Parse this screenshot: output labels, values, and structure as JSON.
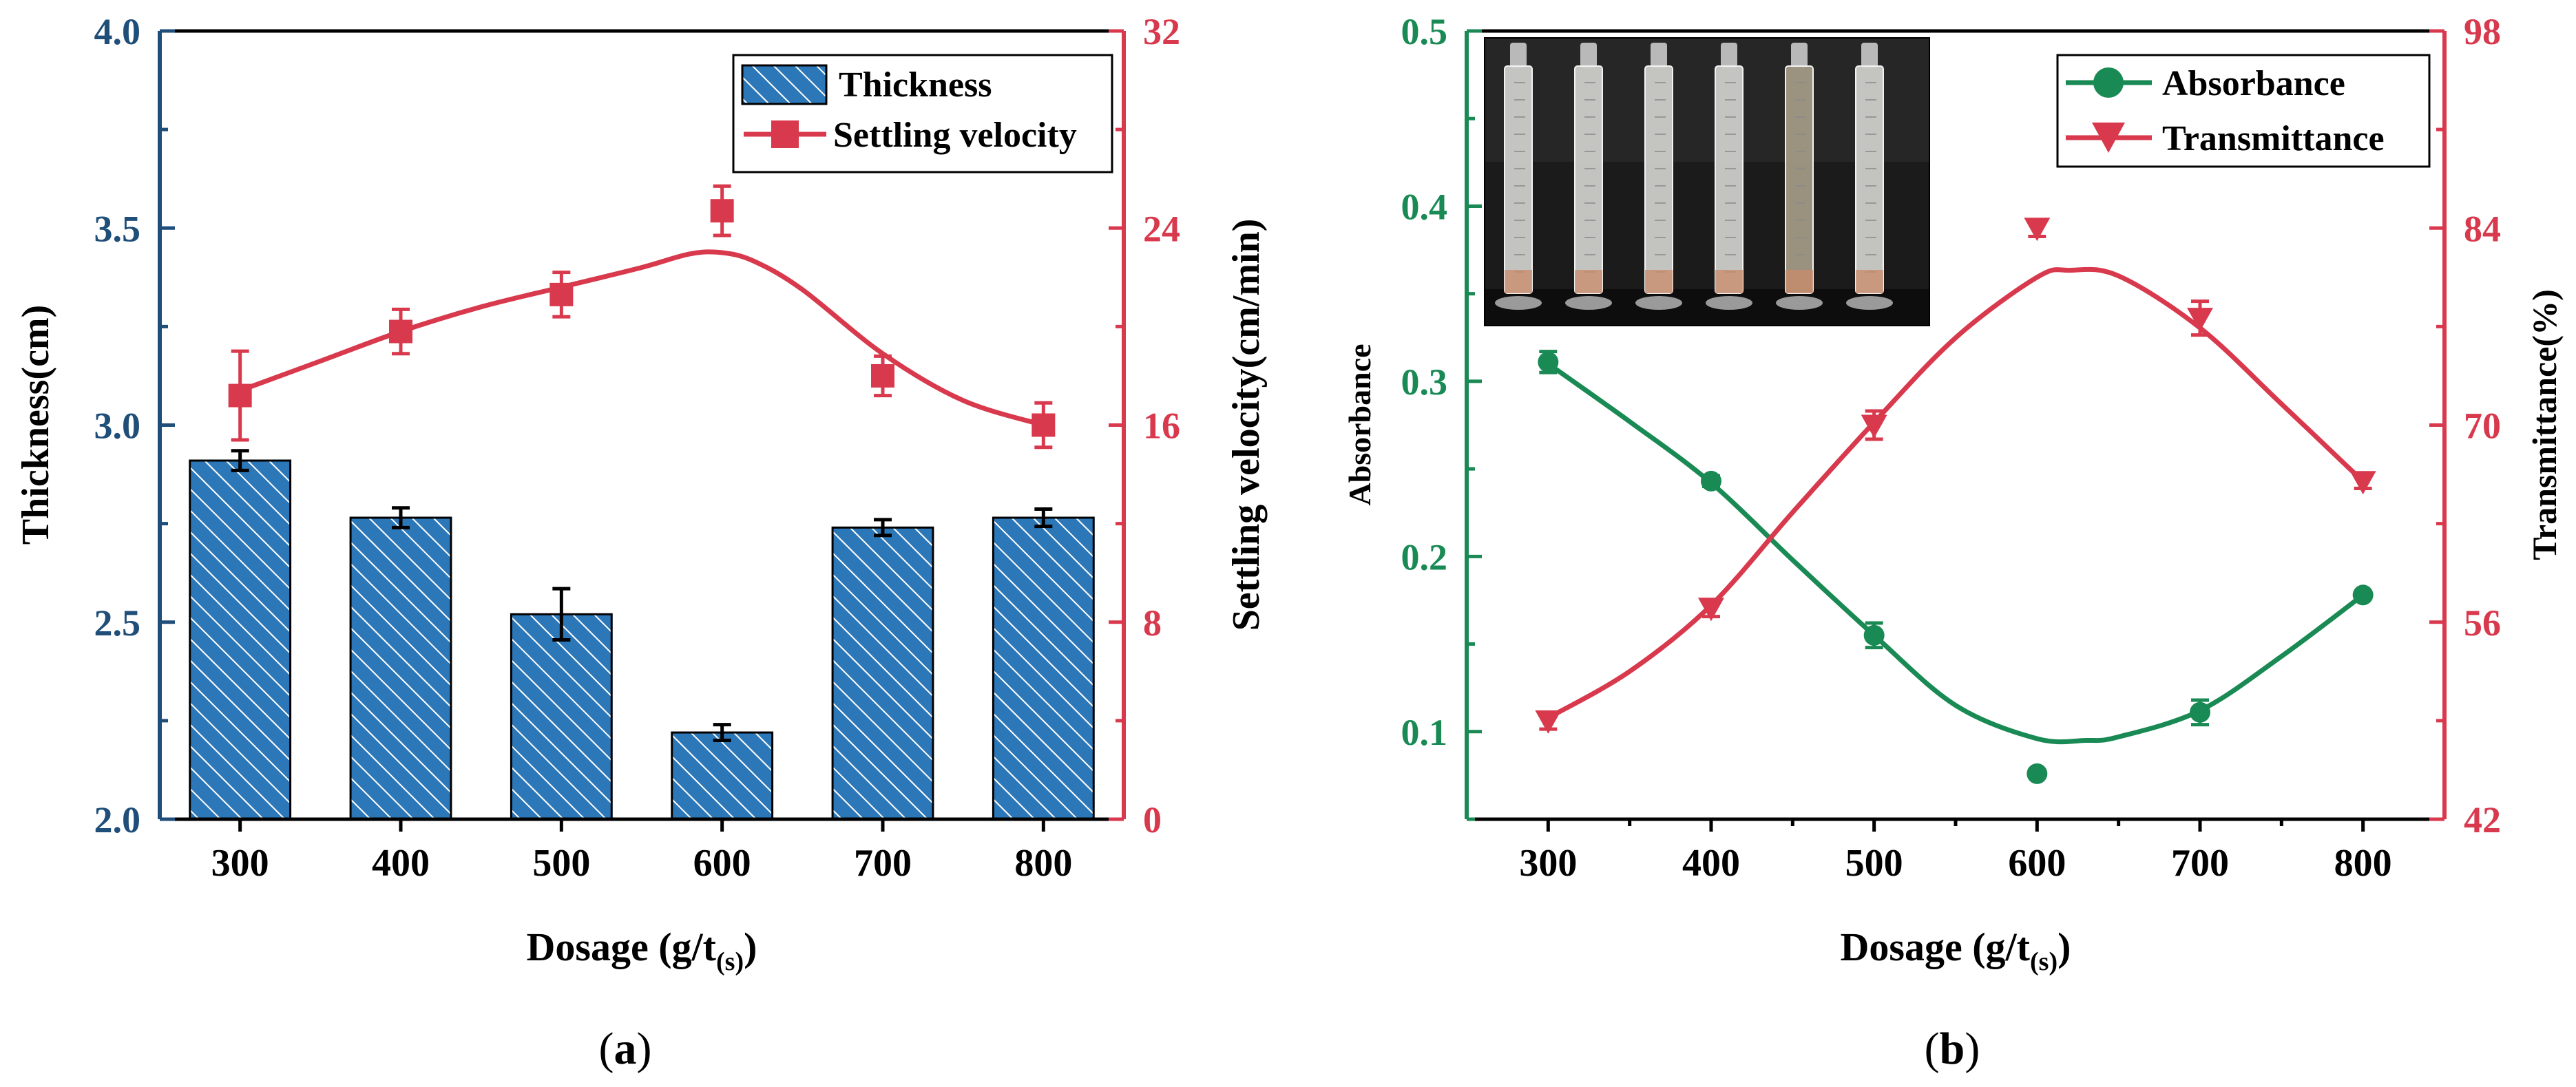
{
  "colors": {
    "left_axis_a": "#1f4e79",
    "right_axis_a": "#d8394d",
    "bar_fill": "#2c77b8",
    "bar_hatch": "#ffffff",
    "left_axis_b": "#1a8a55",
    "right_axis_b": "#d8394d",
    "black": "#000000"
  },
  "chart_data": [
    {
      "type": "bar",
      "panel_label": "(a)",
      "panel_label_parts": [
        "(",
        "a",
        ")"
      ],
      "xlabel": "Dosage (g/t",
      "xlabel_sub": "(s)",
      "xlabel_close": ")",
      "ylabel_left": "Thickness(cm)",
      "ylabel_right": "Settling velocity(cm/min)",
      "categories": [
        "300",
        "400",
        "500",
        "600",
        "700",
        "800"
      ],
      "x": [
        300,
        400,
        500,
        600,
        700,
        800
      ],
      "ylim_left": [
        2.0,
        4.0
      ],
      "yticks_left": [
        "2.0",
        "2.5",
        "3.0",
        "3.5",
        "4.0"
      ],
      "yticks_left_values": [
        2.0,
        2.5,
        3.0,
        3.5,
        4.0
      ],
      "ylim_right": [
        0,
        32
      ],
      "yticks_right": [
        "0",
        "8",
        "16",
        "24",
        "32"
      ],
      "yticks_right_values": [
        0,
        8,
        16,
        24,
        32
      ],
      "legend_position": "top-right",
      "series": [
        {
          "name": "Thickness",
          "kind": "bar",
          "axis": "left",
          "values": [
            2.91,
            2.765,
            2.52,
            2.22,
            2.74,
            2.765
          ],
          "errors": [
            0.025,
            0.025,
            0.065,
            0.02,
            0.02,
            0.022
          ]
        },
        {
          "name": "Settling velocity",
          "kind": "line-marker",
          "marker": "square",
          "axis": "right",
          "values": [
            17.2,
            19.8,
            21.3,
            24.7,
            18.0,
            16.0
          ],
          "errors": [
            1.8,
            0.9,
            0.9,
            1.0,
            0.8,
            0.9
          ],
          "smooth_curve": [
            [
              300,
              17.4
            ],
            [
              350,
              18.6
            ],
            [
              400,
              19.8
            ],
            [
              450,
              20.8
            ],
            [
              500,
              21.6
            ],
            [
              550,
              22.4
            ],
            [
              580,
              22.95
            ],
            [
              600,
              23.0
            ],
            [
              620,
              22.65
            ],
            [
              650,
              21.5
            ],
            [
              700,
              18.9
            ],
            [
              750,
              17.0
            ],
            [
              800,
              16.0
            ]
          ]
        }
      ]
    },
    {
      "type": "line",
      "panel_label": "(b)",
      "panel_label_parts": [
        "(",
        "b",
        ")"
      ],
      "xlabel": "Dosage (g/t",
      "xlabel_sub": "(s)",
      "xlabel_close": ")",
      "ylabel_left": "Absorbance",
      "ylabel_right": "Transmittance(%)",
      "x": [
        300,
        400,
        500,
        600,
        700,
        800
      ],
      "xticks": [
        "300",
        "400",
        "500",
        "600",
        "700",
        "800"
      ],
      "xlim": [
        250,
        850
      ],
      "ylim_left": [
        0.05,
        0.5
      ],
      "yticks_left": [
        "0.1",
        "0.2",
        "0.3",
        "0.4",
        "0.5"
      ],
      "yticks_left_values": [
        0.1,
        0.2,
        0.3,
        0.4,
        0.5
      ],
      "ylim_right": [
        42,
        98
      ],
      "yticks_right": [
        "42",
        "56",
        "70",
        "84",
        "98"
      ],
      "yticks_right_values": [
        42,
        56,
        70,
        84,
        98
      ],
      "legend_position": "top-right",
      "inset": "photo of six graduated cylinders with settled samples",
      "series": [
        {
          "name": "Absorbance",
          "kind": "line-marker",
          "marker": "circle",
          "axis": "left",
          "values": [
            0.311,
            0.243,
            0.155,
            0.076,
            0.111,
            0.178
          ],
          "errors": [
            0.006,
            0.003,
            0.007,
            0.002,
            0.007,
            0.002
          ],
          "smooth_curve": [
            [
              300,
              0.31
            ],
            [
              350,
              0.277
            ],
            [
              400,
              0.242
            ],
            [
              450,
              0.198
            ],
            [
              500,
              0.155
            ],
            [
              550,
              0.115
            ],
            [
              600,
              0.096
            ],
            [
              630,
              0.095
            ],
            [
              650,
              0.097
            ],
            [
              700,
              0.112
            ],
            [
              750,
              0.143
            ],
            [
              800,
              0.178
            ]
          ]
        },
        {
          "name": "Transmittance",
          "kind": "line-marker",
          "marker": "triangle-down",
          "axis": "right",
          "values": [
            49.0,
            57.0,
            70.0,
            84.0,
            77.6,
            66.0
          ],
          "errors": [
            0.6,
            0.6,
            1.0,
            0.6,
            1.2,
            0.5
          ],
          "smooth_curve": [
            [
              300,
              49.2
            ],
            [
              350,
              52.5
            ],
            [
              400,
              57.2
            ],
            [
              450,
              63.8
            ],
            [
              500,
              70.2
            ],
            [
              550,
              76.2
            ],
            [
              600,
              80.5
            ],
            [
              620,
              81.0
            ],
            [
              650,
              80.6
            ],
            [
              700,
              76.9
            ],
            [
              750,
              71.5
            ],
            [
              800,
              66.0
            ]
          ]
        }
      ]
    }
  ]
}
